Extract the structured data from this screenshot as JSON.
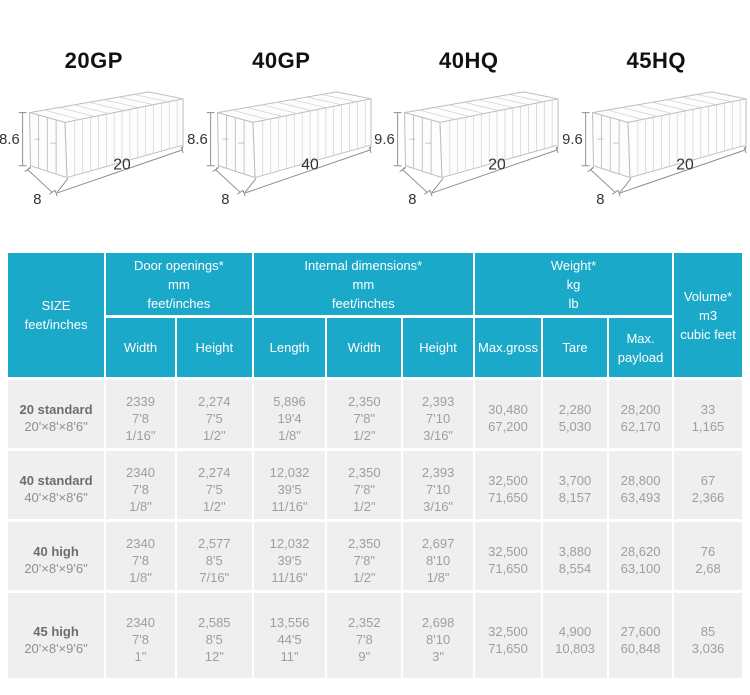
{
  "colors": {
    "accent": "#1ba9ca",
    "cell_bg": "#efefef"
  },
  "figures": [
    {
      "title": "20GP",
      "height": "8.6",
      "width": "8",
      "length": "20"
    },
    {
      "title": "40GP",
      "height": "8.6",
      "width": "8",
      "length": "40"
    },
    {
      "title": "40HQ",
      "height": "9.6",
      "width": "8",
      "length": "20"
    },
    {
      "title": "45HQ",
      "height": "9.6",
      "width": "8",
      "length": "20"
    }
  ],
  "table": {
    "size_header": {
      "line1": "SIZE",
      "line2": "feet/inches"
    },
    "groups": [
      {
        "lines": [
          "Door openings*",
          "mm",
          "feet/inches"
        ]
      },
      {
        "lines": [
          "Internal dimensions*",
          "mm",
          "feet/inches"
        ]
      },
      {
        "lines": [
          "Weight*",
          "kg",
          "lb"
        ]
      }
    ],
    "volume_header": {
      "line1": "Volume*",
      "line2": "m3",
      "line3": "cubic feet"
    },
    "subheaders": [
      "Width",
      "Height",
      "Length",
      "Width",
      "Height",
      "Max.gross",
      "Tare",
      "Max. payload"
    ],
    "rows": [
      {
        "name": "20 standard",
        "size": "20'×8'×8'6\"",
        "cells": [
          [
            "2339",
            "7'8",
            "1/16\""
          ],
          [
            "2,274",
            "7'5",
            "1/2\""
          ],
          [
            "5,896",
            "19'4",
            "1/8\""
          ],
          [
            "2,350",
            "7'8\"",
            "1/2\""
          ],
          [
            "2,393",
            "7'10",
            "3/16\""
          ],
          [
            "30,480",
            "67,200"
          ],
          [
            "2,280",
            "5,030"
          ],
          [
            "28,200",
            "62,170"
          ],
          [
            "33",
            "1,165"
          ]
        ]
      },
      {
        "name": "40 standard",
        "size": "40'×8'×8'6\"",
        "cells": [
          [
            "2340",
            "7'8",
            "1/8\""
          ],
          [
            "2,274",
            "7'5",
            "1/2\""
          ],
          [
            "12,032",
            "39'5",
            "11/16\""
          ],
          [
            "2,350",
            "7'8\"",
            "1/2\""
          ],
          [
            "2,393",
            "7'10",
            "3/16\""
          ],
          [
            "32,500",
            "71,650"
          ],
          [
            "3,700",
            "8,157"
          ],
          [
            "28,800",
            "63,493"
          ],
          [
            "67",
            "2,366"
          ]
        ]
      },
      {
        "name": "40 high",
        "size": "20'×8'×9'6\"",
        "cells": [
          [
            "2340",
            "7'8",
            "1/8\""
          ],
          [
            "2,577",
            "8'5",
            "7/16\""
          ],
          [
            "12,032",
            "39'5",
            "11/16\""
          ],
          [
            "2,350",
            "7'8\"",
            "1/2\""
          ],
          [
            "2,697",
            "8'10",
            "1/8\""
          ],
          [
            "32,500",
            "71,650"
          ],
          [
            "3,880",
            "8,554"
          ],
          [
            "28,620",
            "63,100"
          ],
          [
            "76",
            "2,68"
          ]
        ]
      },
      {
        "name": "45 high",
        "size": "20'×8'×9'6\"",
        "cells": [
          [
            "2340",
            "7'8",
            "1\""
          ],
          [
            "2,585",
            "8'5",
            "12\""
          ],
          [
            "13,556",
            "44'5",
            "11\""
          ],
          [
            "2,352",
            "7'8",
            "9\""
          ],
          [
            "2,698",
            "8'10",
            "3\""
          ],
          [
            "32,500",
            "71,650"
          ],
          [
            "4,900",
            "10,803"
          ],
          [
            "27,600",
            "60,848"
          ],
          [
            "85",
            "3,036"
          ]
        ]
      }
    ]
  }
}
